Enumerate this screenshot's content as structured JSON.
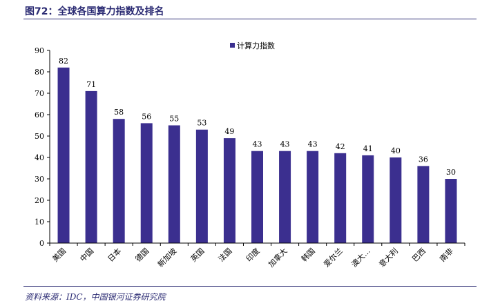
{
  "figure": {
    "title": "图72：全球各国算力指数及排名",
    "source": "资料来源：IDC，中国银河证券研究院"
  },
  "colors": {
    "bar": "#3B2F8F",
    "axis": "#000000",
    "title": "#2B2B73"
  },
  "chart_data": {
    "type": "bar",
    "title": "",
    "xlabel": "",
    "ylabel": "",
    "ylim": [
      0,
      90
    ],
    "yticks": [
      0,
      10,
      20,
      30,
      40,
      50,
      60,
      70,
      80,
      90
    ],
    "grid": false,
    "legend": {
      "placement": "top-right",
      "entries": [
        "计算力指数"
      ]
    },
    "categories": [
      "美国",
      "中国",
      "日本",
      "德国",
      "新加坡",
      "英国",
      "法国",
      "印度",
      "加拿大",
      "韩国",
      "爱尔兰",
      "澳大…",
      "意大利",
      "巴西",
      "南非"
    ],
    "series": [
      {
        "name": "计算力指数",
        "values": [
          82,
          71,
          58,
          56,
          55,
          53,
          49,
          43,
          43,
          43,
          42,
          41,
          40,
          36,
          30
        ]
      }
    ]
  }
}
